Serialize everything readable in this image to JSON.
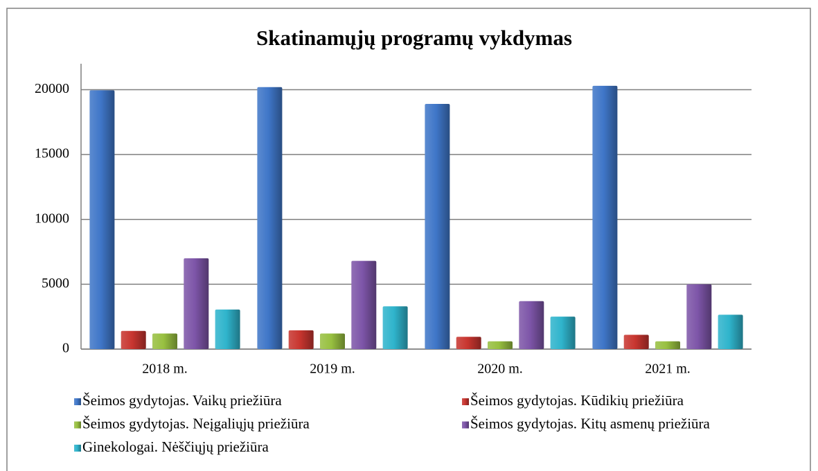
{
  "chart_data": {
    "type": "bar",
    "title": "Skatinamųjų programų vykdymas",
    "categories": [
      "2018 m.",
      "2019 m.",
      "2020 m.",
      "2021 m."
    ],
    "series": [
      {
        "name": "Šeimos gydytojas. Vaikų priežiūra",
        "color": "#3f76c8",
        "values": [
          19950,
          20200,
          18900,
          20300
        ]
      },
      {
        "name": "Šeimos gydytojas. Kūdikių priežiūra",
        "color": "#c8352f",
        "values": [
          1400,
          1450,
          950,
          1100
        ]
      },
      {
        "name": "Šeimos gydytojas. Neįgaliųjų priežiūra",
        "color": "#98c040",
        "values": [
          1200,
          1200,
          600,
          600
        ]
      },
      {
        "name": "Šeimos gydytojas. Kitų asmenų priežiūra",
        "color": "#7d55a8",
        "values": [
          7000,
          6800,
          3700,
          5000
        ]
      },
      {
        "name": "Ginekologai. Nėščiųjų priežiūra",
        "color": "#2fb4cc",
        "values": [
          3050,
          3300,
          2500,
          2650
        ]
      }
    ],
    "ylim": [
      0,
      22000
    ],
    "yticks": [
      0,
      5000,
      10000,
      15000,
      20000
    ],
    "grid": true,
    "legend": "bottom"
  }
}
